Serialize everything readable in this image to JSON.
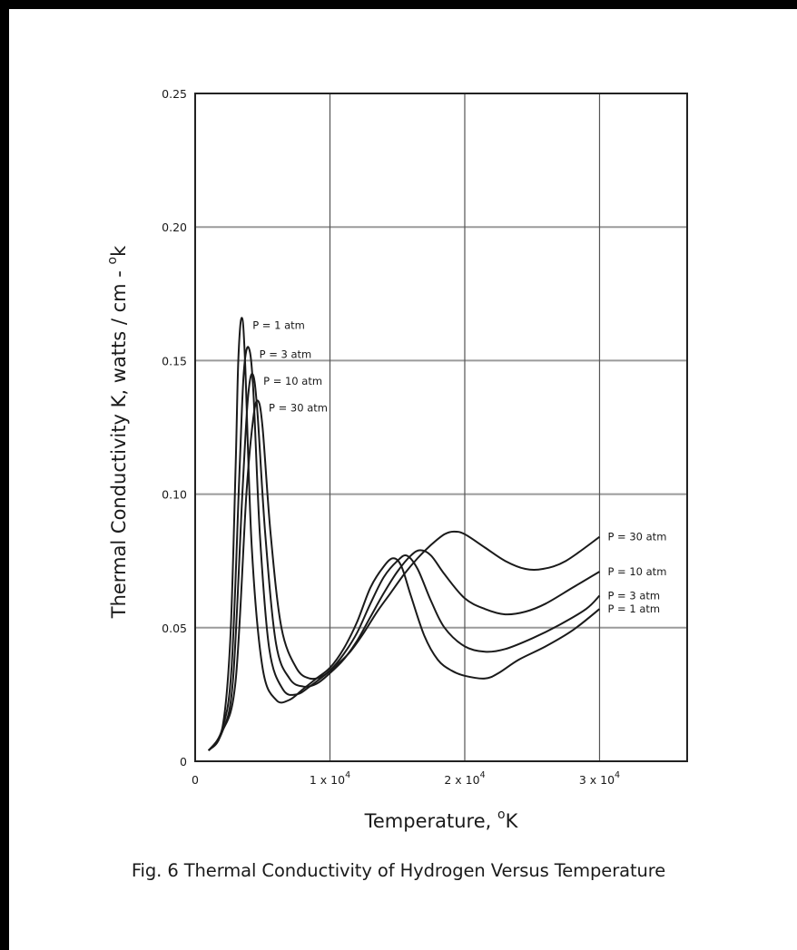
{
  "caption": "Fig. 6  Thermal Conductivity of Hydrogen Versus Temperature",
  "chart_data": {
    "type": "line",
    "title": "",
    "xlabel": "Temperature, °K",
    "ylabel": "Thermal Conductivity  K, watts / cm - °k",
    "xlim": [
      0,
      36500
    ],
    "ylim": [
      0,
      0.25
    ],
    "grid": true,
    "x_ticks": [
      {
        "value": 0,
        "label": "0"
      },
      {
        "value": 10000,
        "label": "1 x 10",
        "exp": "4"
      },
      {
        "value": 20000,
        "label": "2 x 10",
        "exp": "4"
      },
      {
        "value": 30000,
        "label": "3 x 10",
        "exp": "4"
      }
    ],
    "y_ticks": [
      {
        "value": 0,
        "label": "0"
      },
      {
        "value": 0.05,
        "label": "0.05"
      },
      {
        "value": 0.1,
        "label": "0.10"
      },
      {
        "value": 0.15,
        "label": "0.15"
      },
      {
        "value": 0.2,
        "label": "0.20"
      },
      {
        "value": 0.25,
        "label": "0.25"
      }
    ],
    "series": [
      {
        "name": "P = 1 atm",
        "points": [
          [
            1000,
            0.004
          ],
          [
            2000,
            0.012
          ],
          [
            2600,
            0.045
          ],
          [
            3000,
            0.11
          ],
          [
            3200,
            0.15
          ],
          [
            3450,
            0.166
          ],
          [
            3700,
            0.15
          ],
          [
            4200,
            0.08
          ],
          [
            5000,
            0.035
          ],
          [
            6000,
            0.023
          ],
          [
            7000,
            0.023
          ],
          [
            8000,
            0.027
          ],
          [
            9000,
            0.031
          ],
          [
            10000,
            0.035
          ],
          [
            11000,
            0.042
          ],
          [
            12000,
            0.052
          ],
          [
            13000,
            0.065
          ],
          [
            14000,
            0.073
          ],
          [
            14700,
            0.076
          ],
          [
            15300,
            0.073
          ],
          [
            16000,
            0.062
          ],
          [
            17000,
            0.047
          ],
          [
            18000,
            0.038
          ],
          [
            19000,
            0.034
          ],
          [
            20000,
            0.032
          ],
          [
            21500,
            0.031
          ],
          [
            22500,
            0.033
          ],
          [
            24000,
            0.038
          ],
          [
            26000,
            0.043
          ],
          [
            28000,
            0.049
          ],
          [
            30000,
            0.057
          ]
        ]
      },
      {
        "name": "P = 3 atm",
        "points": [
          [
            1000,
            0.004
          ],
          [
            2000,
            0.012
          ],
          [
            2700,
            0.035
          ],
          [
            3300,
            0.11
          ],
          [
            3600,
            0.145
          ],
          [
            3950,
            0.155
          ],
          [
            4300,
            0.14
          ],
          [
            4800,
            0.085
          ],
          [
            5500,
            0.042
          ],
          [
            6500,
            0.027
          ],
          [
            7500,
            0.025
          ],
          [
            8500,
            0.028
          ],
          [
            10000,
            0.034
          ],
          [
            11000,
            0.04
          ],
          [
            12000,
            0.048
          ],
          [
            13000,
            0.059
          ],
          [
            14000,
            0.069
          ],
          [
            15000,
            0.075
          ],
          [
            15700,
            0.077
          ],
          [
            16500,
            0.072
          ],
          [
            17500,
            0.06
          ],
          [
            18500,
            0.05
          ],
          [
            20000,
            0.043
          ],
          [
            21500,
            0.041
          ],
          [
            23000,
            0.042
          ],
          [
            25000,
            0.046
          ],
          [
            27000,
            0.051
          ],
          [
            29000,
            0.057
          ],
          [
            30000,
            0.062
          ]
        ]
      },
      {
        "name": "P = 10 atm",
        "points": [
          [
            1000,
            0.004
          ],
          [
            2000,
            0.011
          ],
          [
            2800,
            0.03
          ],
          [
            3500,
            0.1
          ],
          [
            3900,
            0.135
          ],
          [
            4250,
            0.145
          ],
          [
            4600,
            0.132
          ],
          [
            5200,
            0.085
          ],
          [
            6000,
            0.044
          ],
          [
            7000,
            0.031
          ],
          [
            8000,
            0.028
          ],
          [
            9000,
            0.029
          ],
          [
            10000,
            0.033
          ],
          [
            11000,
            0.038
          ],
          [
            12000,
            0.045
          ],
          [
            13000,
            0.054
          ],
          [
            14000,
            0.063
          ],
          [
            15000,
            0.071
          ],
          [
            16000,
            0.077
          ],
          [
            16700,
            0.079
          ],
          [
            17500,
            0.077
          ],
          [
            18500,
            0.07
          ],
          [
            20000,
            0.061
          ],
          [
            21500,
            0.057
          ],
          [
            23000,
            0.055
          ],
          [
            24500,
            0.056
          ],
          [
            26000,
            0.059
          ],
          [
            28000,
            0.065
          ],
          [
            30000,
            0.071
          ]
        ]
      },
      {
        "name": "P = 30 atm",
        "points": [
          [
            1000,
            0.004
          ],
          [
            2000,
            0.011
          ],
          [
            3000,
            0.03
          ],
          [
            3800,
            0.1
          ],
          [
            4300,
            0.128
          ],
          [
            4650,
            0.135
          ],
          [
            5000,
            0.125
          ],
          [
            5600,
            0.085
          ],
          [
            6400,
            0.05
          ],
          [
            7500,
            0.035
          ],
          [
            8500,
            0.031
          ],
          [
            9500,
            0.032
          ],
          [
            10500,
            0.036
          ],
          [
            11500,
            0.041
          ],
          [
            12500,
            0.048
          ],
          [
            13500,
            0.056
          ],
          [
            14500,
            0.063
          ],
          [
            15500,
            0.07
          ],
          [
            16500,
            0.076
          ],
          [
            17500,
            0.081
          ],
          [
            18500,
            0.085
          ],
          [
            19200,
            0.086
          ],
          [
            20000,
            0.085
          ],
          [
            21500,
            0.08
          ],
          [
            23000,
            0.075
          ],
          [
            24500,
            0.072
          ],
          [
            25800,
            0.072
          ],
          [
            27500,
            0.075
          ],
          [
            30000,
            0.084
          ]
        ]
      }
    ],
    "series_label_placement": "start-label at peak, end-label at right end"
  }
}
